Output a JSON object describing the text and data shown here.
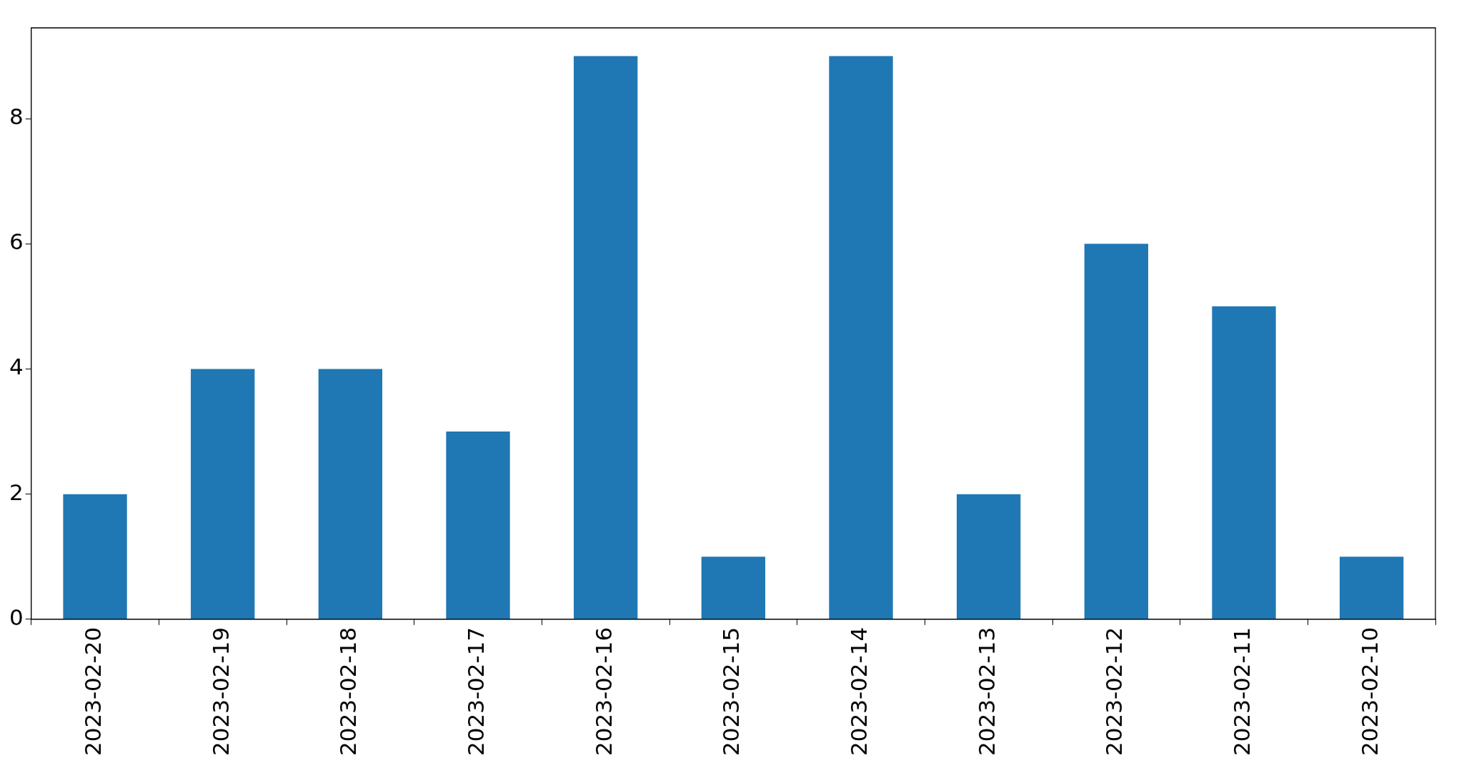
{
  "chart_data": {
    "type": "bar",
    "categories": [
      "2023-02-20",
      "2023-02-19",
      "2023-02-18",
      "2023-02-17",
      "2023-02-16",
      "2023-02-15",
      "2023-02-14",
      "2023-02-13",
      "2023-02-12",
      "2023-02-11",
      "2023-02-10"
    ],
    "values": [
      2,
      4,
      4,
      3,
      9,
      1,
      9,
      2,
      6,
      5,
      1
    ],
    "color": "#1f77b4",
    "ylim": [
      0,
      9.45
    ],
    "yticks": [
      0,
      2,
      4,
      6,
      8
    ]
  }
}
